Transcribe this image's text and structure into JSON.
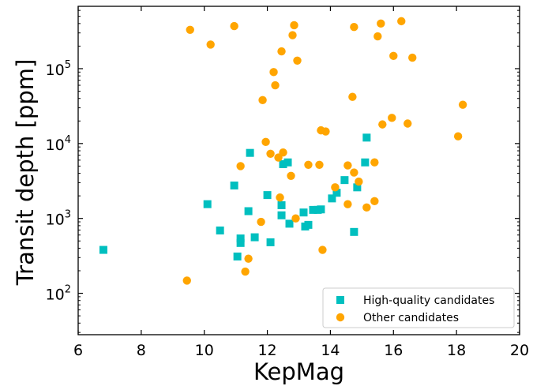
{
  "chart_data": {
    "type": "scatter",
    "xlabel": "KepMag",
    "ylabel": "Transit depth [ppm]",
    "xlim": [
      6,
      20
    ],
    "ylim": [
      28,
      680000
    ],
    "yscale": "log",
    "grid": false,
    "legend_position": "lower-right",
    "x_ticks": [
      6,
      8,
      10,
      12,
      14,
      16,
      18,
      20
    ],
    "x_tick_labels": [
      "6",
      "8",
      "10",
      "12",
      "14",
      "16",
      "18",
      "20"
    ],
    "y_ticks": [
      100,
      1000,
      10000,
      100000
    ],
    "y_tick_base": "10",
    "y_tick_exponents": [
      "2",
      "3",
      "4",
      "5"
    ],
    "series": [
      {
        "name": "High-quality candidates",
        "marker": "square",
        "color": "#00BFBF",
        "points": [
          [
            6.8,
            380
          ],
          [
            10.1,
            1550
          ],
          [
            10.5,
            690
          ],
          [
            10.95,
            2750
          ],
          [
            11.05,
            310
          ],
          [
            11.15,
            540
          ],
          [
            11.15,
            470
          ],
          [
            11.4,
            1250
          ],
          [
            11.45,
            7500
          ],
          [
            11.6,
            560
          ],
          [
            12.0,
            2050
          ],
          [
            12.1,
            480
          ],
          [
            12.45,
            1500
          ],
          [
            12.45,
            1100
          ],
          [
            12.5,
            5300
          ],
          [
            12.65,
            5600
          ],
          [
            12.7,
            850
          ],
          [
            13.15,
            1200
          ],
          [
            13.2,
            780
          ],
          [
            13.3,
            820
          ],
          [
            13.45,
            1300
          ],
          [
            13.6,
            1300
          ],
          [
            13.7,
            1320
          ],
          [
            14.05,
            1850
          ],
          [
            14.2,
            2200
          ],
          [
            14.45,
            3250
          ],
          [
            14.75,
            660
          ],
          [
            14.85,
            2600
          ],
          [
            15.1,
            5600
          ],
          [
            15.15,
            12000
          ]
        ]
      },
      {
        "name": "Other candidates",
        "marker": "circle",
        "color": "#FFA500",
        "points": [
          [
            9.45,
            148
          ],
          [
            9.55,
            330000
          ],
          [
            10.2,
            210000
          ],
          [
            10.95,
            370000
          ],
          [
            11.15,
            5000
          ],
          [
            11.3,
            195
          ],
          [
            11.4,
            290
          ],
          [
            11.8,
            900
          ],
          [
            11.85,
            38000
          ],
          [
            11.95,
            10500
          ],
          [
            12.1,
            7300
          ],
          [
            12.2,
            90000
          ],
          [
            12.25,
            60000
          ],
          [
            12.35,
            6500
          ],
          [
            12.4,
            1900
          ],
          [
            12.45,
            170000
          ],
          [
            12.5,
            7600
          ],
          [
            12.75,
            3700
          ],
          [
            12.8,
            280000
          ],
          [
            12.85,
            380000
          ],
          [
            12.9,
            1000
          ],
          [
            12.95,
            128000
          ],
          [
            13.3,
            5200
          ],
          [
            13.65,
            5200
          ],
          [
            13.7,
            15000
          ],
          [
            13.75,
            380
          ],
          [
            13.85,
            14500
          ],
          [
            14.15,
            2600
          ],
          [
            14.55,
            5100
          ],
          [
            14.55,
            1550
          ],
          [
            14.7,
            42000
          ],
          [
            14.75,
            4100
          ],
          [
            14.75,
            360000
          ],
          [
            14.9,
            3100
          ],
          [
            15.15,
            1400
          ],
          [
            15.4,
            5600
          ],
          [
            15.4,
            1700
          ],
          [
            15.5,
            270000
          ],
          [
            15.6,
            400000
          ],
          [
            15.65,
            18000
          ],
          [
            15.95,
            22000
          ],
          [
            16.0,
            148000
          ],
          [
            16.25,
            430000
          ],
          [
            16.45,
            18500
          ],
          [
            16.6,
            140000
          ],
          [
            18.05,
            12500
          ],
          [
            18.2,
            33000
          ]
        ]
      }
    ]
  }
}
